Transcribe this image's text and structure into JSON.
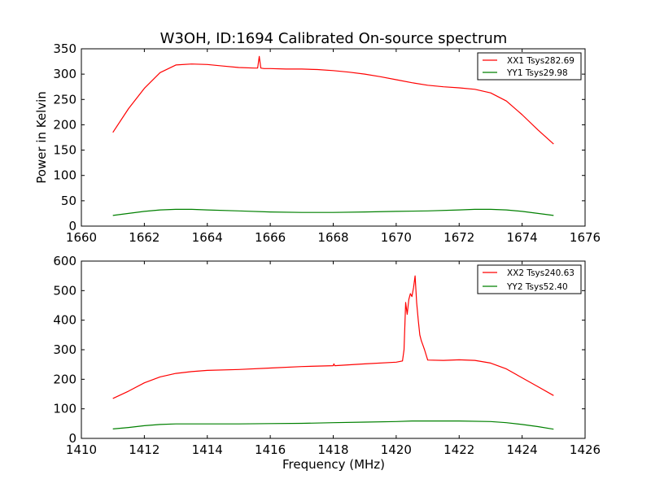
{
  "chart_data": [
    {
      "type": "line",
      "title": "W3OH, ID:1694 Calibrated On-source spectrum",
      "xlabel": "",
      "ylabel": "Power in Kelvin",
      "xlim": [
        1660,
        1676
      ],
      "ylim": [
        0,
        350
      ],
      "x_ticks": [
        "1660",
        "1662",
        "1664",
        "1666",
        "1668",
        "1670",
        "1672",
        "1674",
        "1676"
      ],
      "y_ticks": [
        "0",
        "50",
        "100",
        "150",
        "200",
        "250",
        "300",
        "350"
      ],
      "grid": false,
      "legend_position": "top-right",
      "series": [
        {
          "name": "XX1 Tsys282.69",
          "color": "#ff0000",
          "x": [
            1661.0,
            1661.5,
            1662.0,
            1662.5,
            1663.0,
            1663.5,
            1664.0,
            1664.5,
            1665.0,
            1665.5,
            1665.6,
            1665.65,
            1665.7,
            1665.8,
            1666.0,
            1666.5,
            1667.0,
            1667.5,
            1668.0,
            1668.5,
            1669.0,
            1669.5,
            1670.0,
            1670.5,
            1671.0,
            1671.5,
            1672.0,
            1672.5,
            1673.0,
            1673.5,
            1674.0,
            1674.5,
            1675.0
          ],
          "y": [
            185,
            232,
            272,
            303,
            318,
            320,
            319,
            316,
            313,
            312,
            312,
            335,
            312,
            311,
            311,
            310,
            310,
            309,
            307,
            304,
            300,
            295,
            289,
            283,
            278,
            275,
            273,
            270,
            263,
            247,
            220,
            190,
            162
          ]
        },
        {
          "name": "YY1 Tsys29.98",
          "color": "#008000",
          "x": [
            1661.0,
            1661.5,
            1662.0,
            1662.5,
            1663.0,
            1663.5,
            1664.0,
            1665.0,
            1666.0,
            1667.0,
            1668.0,
            1669.0,
            1670.0,
            1671.0,
            1672.0,
            1672.5,
            1673.0,
            1673.5,
            1674.0,
            1674.5,
            1675.0
          ],
          "y": [
            21,
            25,
            29,
            32,
            33,
            33,
            32,
            30,
            28,
            27,
            27,
            28,
            29,
            30,
            32,
            33,
            33,
            32,
            29,
            25,
            21
          ]
        }
      ]
    },
    {
      "type": "line",
      "title": "",
      "xlabel": "Frequency (MHz)",
      "ylabel": "",
      "xlim": [
        1410,
        1426
      ],
      "ylim": [
        0,
        600
      ],
      "x_ticks": [
        "1410",
        "1412",
        "1414",
        "1416",
        "1418",
        "1420",
        "1422",
        "1424",
        "1426"
      ],
      "y_ticks": [
        "0",
        "100",
        "200",
        "300",
        "400",
        "500",
        "600"
      ],
      "grid": false,
      "legend_position": "top-right",
      "series": [
        {
          "name": "XX2 Tsys240.63",
          "color": "#ff0000",
          "x": [
            1411.0,
            1411.5,
            1412.0,
            1412.5,
            1413.0,
            1413.5,
            1414.0,
            1415.0,
            1416.0,
            1417.0,
            1418.0,
            1418.02,
            1418.05,
            1419.0,
            1420.0,
            1420.2,
            1420.25,
            1420.3,
            1420.35,
            1420.4,
            1420.45,
            1420.5,
            1420.55,
            1420.6,
            1420.65,
            1420.7,
            1420.75,
            1420.8,
            1420.85,
            1420.9,
            1421.0,
            1421.5,
            1422.0,
            1422.5,
            1423.0,
            1423.5,
            1424.0,
            1424.5,
            1425.0
          ],
          "y": [
            135,
            160,
            188,
            208,
            220,
            226,
            230,
            233,
            238,
            243,
            246,
            252,
            246,
            252,
            258,
            262,
            300,
            460,
            420,
            470,
            490,
            480,
            510,
            550,
            460,
            400,
            350,
            330,
            315,
            300,
            265,
            264,
            266,
            264,
            255,
            235,
            205,
            175,
            145
          ]
        },
        {
          "name": "YY2 Tsys52.40",
          "color": "#008000",
          "x": [
            1411.0,
            1411.5,
            1412.0,
            1412.5,
            1413.0,
            1414.0,
            1415.0,
            1416.0,
            1417.0,
            1418.0,
            1419.0,
            1420.0,
            1420.5,
            1421.0,
            1422.0,
            1423.0,
            1423.5,
            1424.0,
            1424.5,
            1425.0
          ],
          "y": [
            32,
            37,
            43,
            47,
            49,
            49,
            49,
            50,
            51,
            53,
            55,
            57,
            59,
            59,
            59,
            57,
            53,
            47,
            40,
            31
          ]
        }
      ]
    }
  ]
}
